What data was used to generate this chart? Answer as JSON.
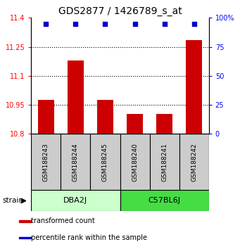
{
  "title": "GDS2877 / 1426789_s_at",
  "samples": [
    "GSM188243",
    "GSM188244",
    "GSM188245",
    "GSM188240",
    "GSM188241",
    "GSM188242"
  ],
  "group_labels": [
    "DBA2J",
    "C57BL6J"
  ],
  "group_colors_light": [
    "#ccffcc",
    "#55ee55"
  ],
  "bar_values": [
    10.975,
    11.18,
    10.975,
    10.905,
    10.905,
    11.285
  ],
  "percentile_values": [
    95,
    95,
    95,
    95,
    95,
    95
  ],
  "bar_color": "#cc0000",
  "dot_color": "#0000cc",
  "ylim_left": [
    10.8,
    11.4
  ],
  "ylim_right": [
    0,
    100
  ],
  "yticks_left": [
    10.8,
    10.95,
    11.1,
    11.25,
    11.4
  ],
  "ytick_labels_left": [
    "10.8",
    "10.95",
    "11.1",
    "11.25",
    "11.4"
  ],
  "yticks_right": [
    0,
    25,
    50,
    75,
    100
  ],
  "ytick_labels_right": [
    "0",
    "25",
    "50",
    "75",
    "100%"
  ],
  "hgrid_values": [
    10.95,
    11.1,
    11.25
  ],
  "bar_width": 0.55,
  "strain_label": "strain",
  "legend_items": [
    "transformed count",
    "percentile rank within the sample"
  ],
  "legend_colors": [
    "#cc0000",
    "#0000cc"
  ],
  "title_fontsize": 10
}
